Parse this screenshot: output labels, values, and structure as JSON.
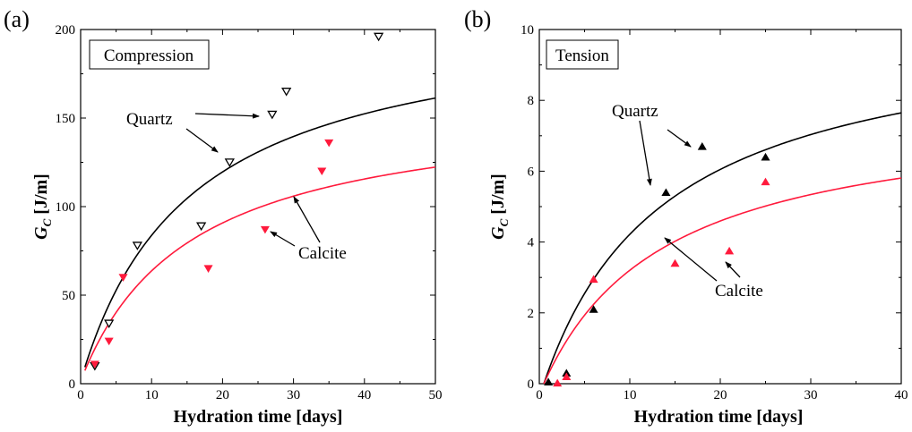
{
  "colors": {
    "quartz": "#000000",
    "calcite": "#ff1a3c",
    "axis": "#000000"
  },
  "chart_data": [
    {
      "panel": "(a)",
      "type": "scatter",
      "box_label": "Compression",
      "xlabel": "Hydration time [days]",
      "ylabel": {
        "main": "G",
        "sub": "C",
        "unit": "[J/m]"
      },
      "xlim": [
        0,
        50
      ],
      "ylim": [
        0,
        200
      ],
      "xticks": [
        0,
        10,
        20,
        30,
        40,
        50
      ],
      "yticks": [
        0,
        50,
        100,
        150,
        200
      ],
      "marker": "triangle-down",
      "series": [
        {
          "name": "Quartz",
          "color": "#000000",
          "filled": false,
          "points": [
            [
              2,
              10
            ],
            [
              4,
              34
            ],
            [
              8,
              78
            ],
            [
              17,
              89
            ],
            [
              21,
              125
            ],
            [
              27,
              152
            ],
            [
              29,
              165
            ],
            [
              42,
              196
            ]
          ],
          "curve": {
            "kind": "saturation",
            "a": 209,
            "b": 15.4
          }
        },
        {
          "name": "Calcite",
          "color": "#ff1a3c",
          "filled": true,
          "points": [
            [
              2,
              11
            ],
            [
              4,
              24
            ],
            [
              6,
              60
            ],
            [
              18,
              65
            ],
            [
              26,
              87
            ],
            [
              34,
              120
            ],
            [
              35,
              136
            ]
          ],
          "curve": {
            "kind": "saturation",
            "a": 158,
            "b": 15.4
          }
        }
      ],
      "annotations": [
        {
          "text": "Quartz",
          "series": "Quartz"
        },
        {
          "text": "Calcite",
          "series": "Calcite"
        }
      ]
    },
    {
      "panel": "(b)",
      "type": "scatter",
      "box_label": "Tension",
      "xlabel": "Hydration time [days]",
      "ylabel": {
        "main": "G",
        "sub": "C",
        "unit": "[J/m]"
      },
      "xlim": [
        0,
        40
      ],
      "ylim": [
        0,
        10
      ],
      "xticks": [
        0,
        10,
        20,
        30,
        40
      ],
      "yticks": [
        0,
        2,
        4,
        6,
        8,
        10
      ],
      "marker": "triangle-up",
      "series": [
        {
          "name": "Quartz",
          "color": "#000000",
          "filled": true,
          "points": [
            [
              1,
              0.05
            ],
            [
              3,
              0.3
            ],
            [
              6,
              2.1
            ],
            [
              14,
              5.4
            ],
            [
              18,
              6.7
            ],
            [
              25,
              6.4
            ]
          ],
          "curve": {
            "kind": "saturation",
            "a": 10.3,
            "b": 13.7,
            "t0": 0.5
          }
        },
        {
          "name": "Calcite",
          "color": "#ff1a3c",
          "filled": true,
          "points": [
            [
              2,
              0.02
            ],
            [
              3,
              0.2
            ],
            [
              6,
              2.95
            ],
            [
              15,
              3.4
            ],
            [
              21,
              3.75
            ],
            [
              25,
              5.7
            ]
          ],
          "curve": {
            "kind": "saturation",
            "a": 7.82,
            "b": 13.7,
            "t0": 0.5
          }
        }
      ],
      "annotations": [
        {
          "text": "Quartz",
          "series": "Quartz"
        },
        {
          "text": "Calcite",
          "series": "Calcite"
        }
      ]
    }
  ]
}
